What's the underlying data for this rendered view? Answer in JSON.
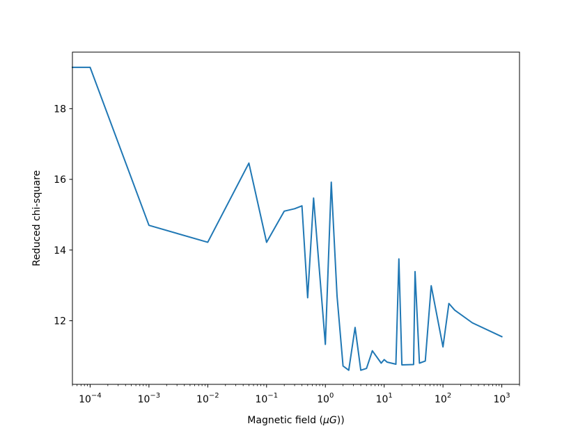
{
  "chart_data": {
    "type": "line",
    "title": "",
    "xlabel": "Magnetic field (μG))",
    "ylabel": "Reduced chi-square",
    "xscale": "log",
    "xlim": [
      5e-05,
      2000
    ],
    "ylim": [
      10.2,
      19.6
    ],
    "grid": false,
    "line_color": "#1f77b4",
    "x_ticks": [
      {
        "value": 0.0001,
        "base": "10",
        "exp": "−4"
      },
      {
        "value": 0.001,
        "base": "10",
        "exp": "−3"
      },
      {
        "value": 0.01,
        "base": "10",
        "exp": "−2"
      },
      {
        "value": 0.1,
        "base": "10",
        "exp": "−1"
      },
      {
        "value": 1,
        "base": "10",
        "exp": "0"
      },
      {
        "value": 10,
        "base": "10",
        "exp": "1"
      },
      {
        "value": 100,
        "base": "10",
        "exp": "2"
      },
      {
        "value": 1000,
        "base": "10",
        "exp": "3"
      }
    ],
    "y_ticks": [
      {
        "value": 12,
        "label": "12"
      },
      {
        "value": 14,
        "label": "14"
      },
      {
        "value": 16,
        "label": "16"
      },
      {
        "value": 18,
        "label": "18"
      }
    ],
    "series": [
      {
        "x": [
          5e-05,
          0.0001,
          0.001,
          0.01,
          0.05,
          0.1,
          0.2,
          0.3,
          0.4,
          0.5,
          0.63,
          1.0,
          1.26,
          1.58,
          2.0,
          2.5,
          3.2,
          4.0,
          5.0,
          6.3,
          8.9,
          10,
          11.2,
          15.8,
          17.8,
          20,
          31.6,
          33.5,
          39.8,
          50,
          63,
          100,
          126,
          158,
          316,
          1000
        ],
        "y": [
          19.17,
          19.17,
          14.7,
          14.22,
          16.46,
          14.22,
          15.1,
          15.17,
          15.25,
          12.65,
          15.47,
          11.33,
          15.92,
          12.7,
          10.72,
          10.6,
          11.81,
          10.6,
          10.65,
          11.15,
          10.8,
          10.9,
          10.83,
          10.77,
          13.75,
          10.75,
          10.76,
          13.39,
          10.8,
          10.86,
          12.99,
          11.26,
          12.49,
          12.3,
          11.94,
          11.55
        ]
      }
    ]
  }
}
